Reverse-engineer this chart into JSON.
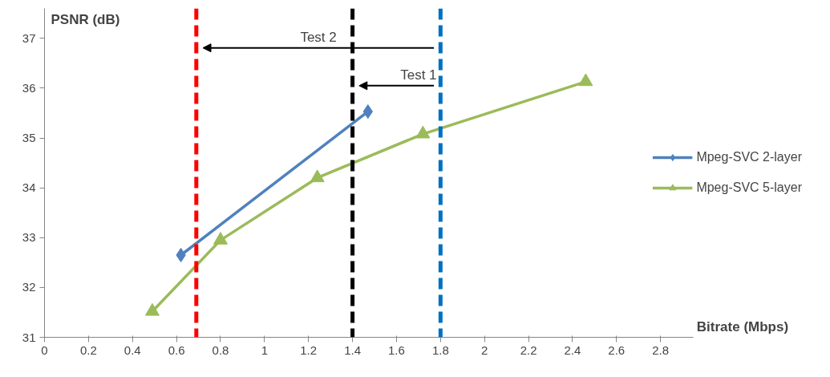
{
  "chart_data": {
    "type": "line",
    "xlabel": "Bitrate (Mbps)",
    "ylabel": "PSNR (dB)",
    "xlim": [
      0,
      2.95
    ],
    "ylim": [
      31,
      37.6
    ],
    "xticks": [
      0,
      0.2,
      0.4,
      0.6,
      0.8,
      1,
      1.2,
      1.4,
      1.6,
      1.8,
      2,
      2.2,
      2.4,
      2.6,
      2.8
    ],
    "yticks": [
      31,
      32,
      33,
      34,
      35,
      36,
      37
    ],
    "grid": false,
    "legend": "right",
    "line_style": "solid",
    "series": [
      {
        "name": "Mpeg-SVC 2-layer",
        "color": "#4f81bd",
        "marker": "diamond",
        "x": [
          0.62,
          1.47
        ],
        "values": [
          32.65,
          35.53
        ]
      },
      {
        "name": "Mpeg-SVC 5-layer",
        "color": "#9bbb59",
        "marker": "triangle",
        "x": [
          0.49,
          0.8,
          1.24,
          1.72,
          2.46
        ],
        "values": [
          31.52,
          32.95,
          34.2,
          35.08,
          36.13
        ]
      }
    ],
    "ref_lines": [
      {
        "axis": "x",
        "value": 0.69,
        "color": "#ff0000",
        "line_style": "dashed"
      },
      {
        "axis": "x",
        "value": 1.4,
        "color": "#000000",
        "line_style": "dashed"
      },
      {
        "axis": "x",
        "value": 1.8,
        "color": "#0070c0",
        "line_style": "dashed"
      }
    ],
    "annotations": [
      "Test 2",
      "Test 1"
    ]
  }
}
